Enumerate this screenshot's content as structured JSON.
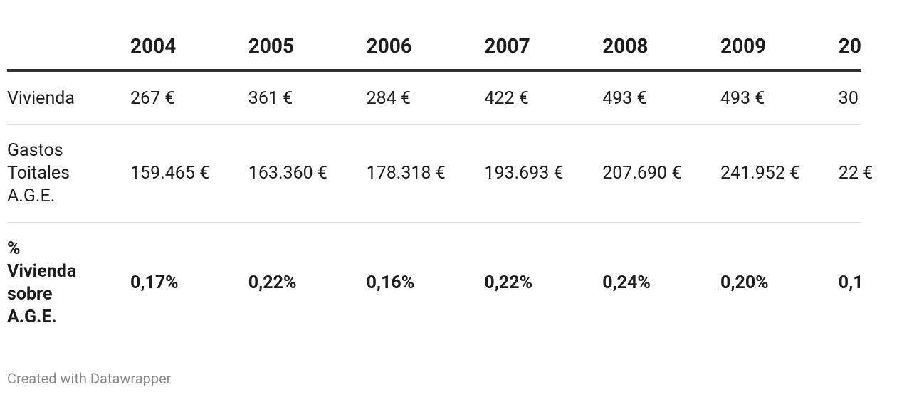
{
  "table": {
    "columns": [
      "2004",
      "2005",
      "2006",
      "2007",
      "2008",
      "2009",
      "20"
    ],
    "rows": [
      {
        "label": "Vivienda",
        "values": [
          "267 €",
          "361 €",
          "284 €",
          "422 €",
          "493 €",
          "493 €",
          "30"
        ]
      },
      {
        "label": "Gastos Toitales A.G.E.",
        "values": [
          "159.465 €",
          "163.360 €",
          "178.318 €",
          "193.693 €",
          "207.690 €",
          "241.952 €",
          "22 €"
        ]
      },
      {
        "label": "% Vivienda sobre A.G.E.",
        "values": [
          "0,17%",
          "0,22%",
          "0,16%",
          "0,22%",
          "0,24%",
          "0,20%",
          "0,1"
        ],
        "bold": true
      }
    ]
  },
  "footer": "Created with Datawrapper"
}
